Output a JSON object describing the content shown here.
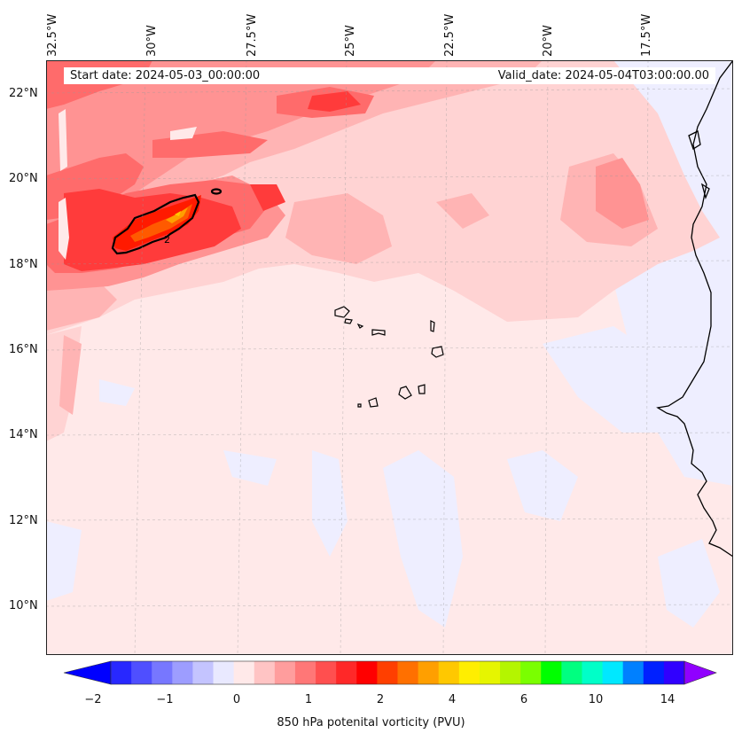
{
  "map": {
    "start_date": "Start date: 2024-05-03_00:00:00",
    "valid_date": "Valid_date: 2024-05-04T03:00:00.00",
    "contour_label": "2",
    "lon_labels": [
      "32.5°W",
      "30°W",
      "27.5°W",
      "25°W",
      "22.5°W",
      "20°W",
      "17.5°W"
    ],
    "lat_labels": [
      "22°N",
      "20°N",
      "18°N",
      "16°N",
      "14°N",
      "12°N",
      "10°N"
    ]
  },
  "colorbar": {
    "title": "850 hPa potenital vorticity (PVU)",
    "tick_labels": [
      "−2",
      "−1",
      "0",
      "1",
      "2",
      "4",
      "6",
      "10",
      "14"
    ],
    "colors": [
      "#0000ff",
      "#2828ff",
      "#4f4fff",
      "#7777ff",
      "#9d9dff",
      "#c4c4ff",
      "#e9e9ff",
      "#ffe9e9",
      "#ffc4c4",
      "#ff9d9d",
      "#ff7777",
      "#ff4f4f",
      "#ff2828",
      "#ff0000",
      "#ff3f00",
      "#ff7000",
      "#ff9f00",
      "#ffc800",
      "#ffee00",
      "#e6f500",
      "#b4f500",
      "#7aff00",
      "#00ff00",
      "#00ff80",
      "#00ffc8",
      "#00e8ff",
      "#0080ff",
      "#0020ff",
      "#3000ff",
      "#9000ff"
    ]
  }
}
